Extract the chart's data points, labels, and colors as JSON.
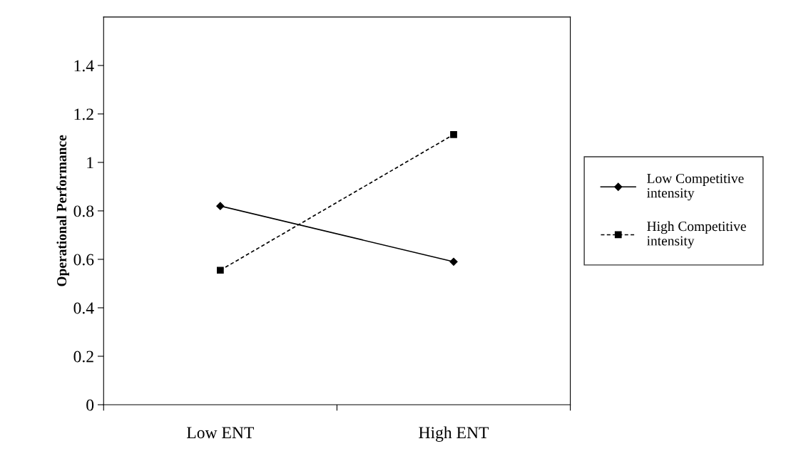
{
  "chart_data": {
    "type": "line",
    "ylabel": "Operational Performance",
    "categories": [
      "Low ENT",
      "High ENT"
    ],
    "series": [
      {
        "name": "Low Competitive\nintensity",
        "color": "#000000",
        "values": [
          0.82,
          0.59
        ],
        "marker": "diamond",
        "line_style": "solid"
      },
      {
        "name": "High Competitive\nintensity",
        "color": "#000000",
        "values": [
          0.555,
          1.115
        ],
        "marker": "square",
        "line_style": "dashed"
      }
    ],
    "ylim": [
      0,
      1.6
    ],
    "yticks": [
      0,
      0.2,
      0.4,
      0.6,
      0.8,
      1,
      1.2,
      1.4
    ],
    "grid": false,
    "legend": "right"
  }
}
